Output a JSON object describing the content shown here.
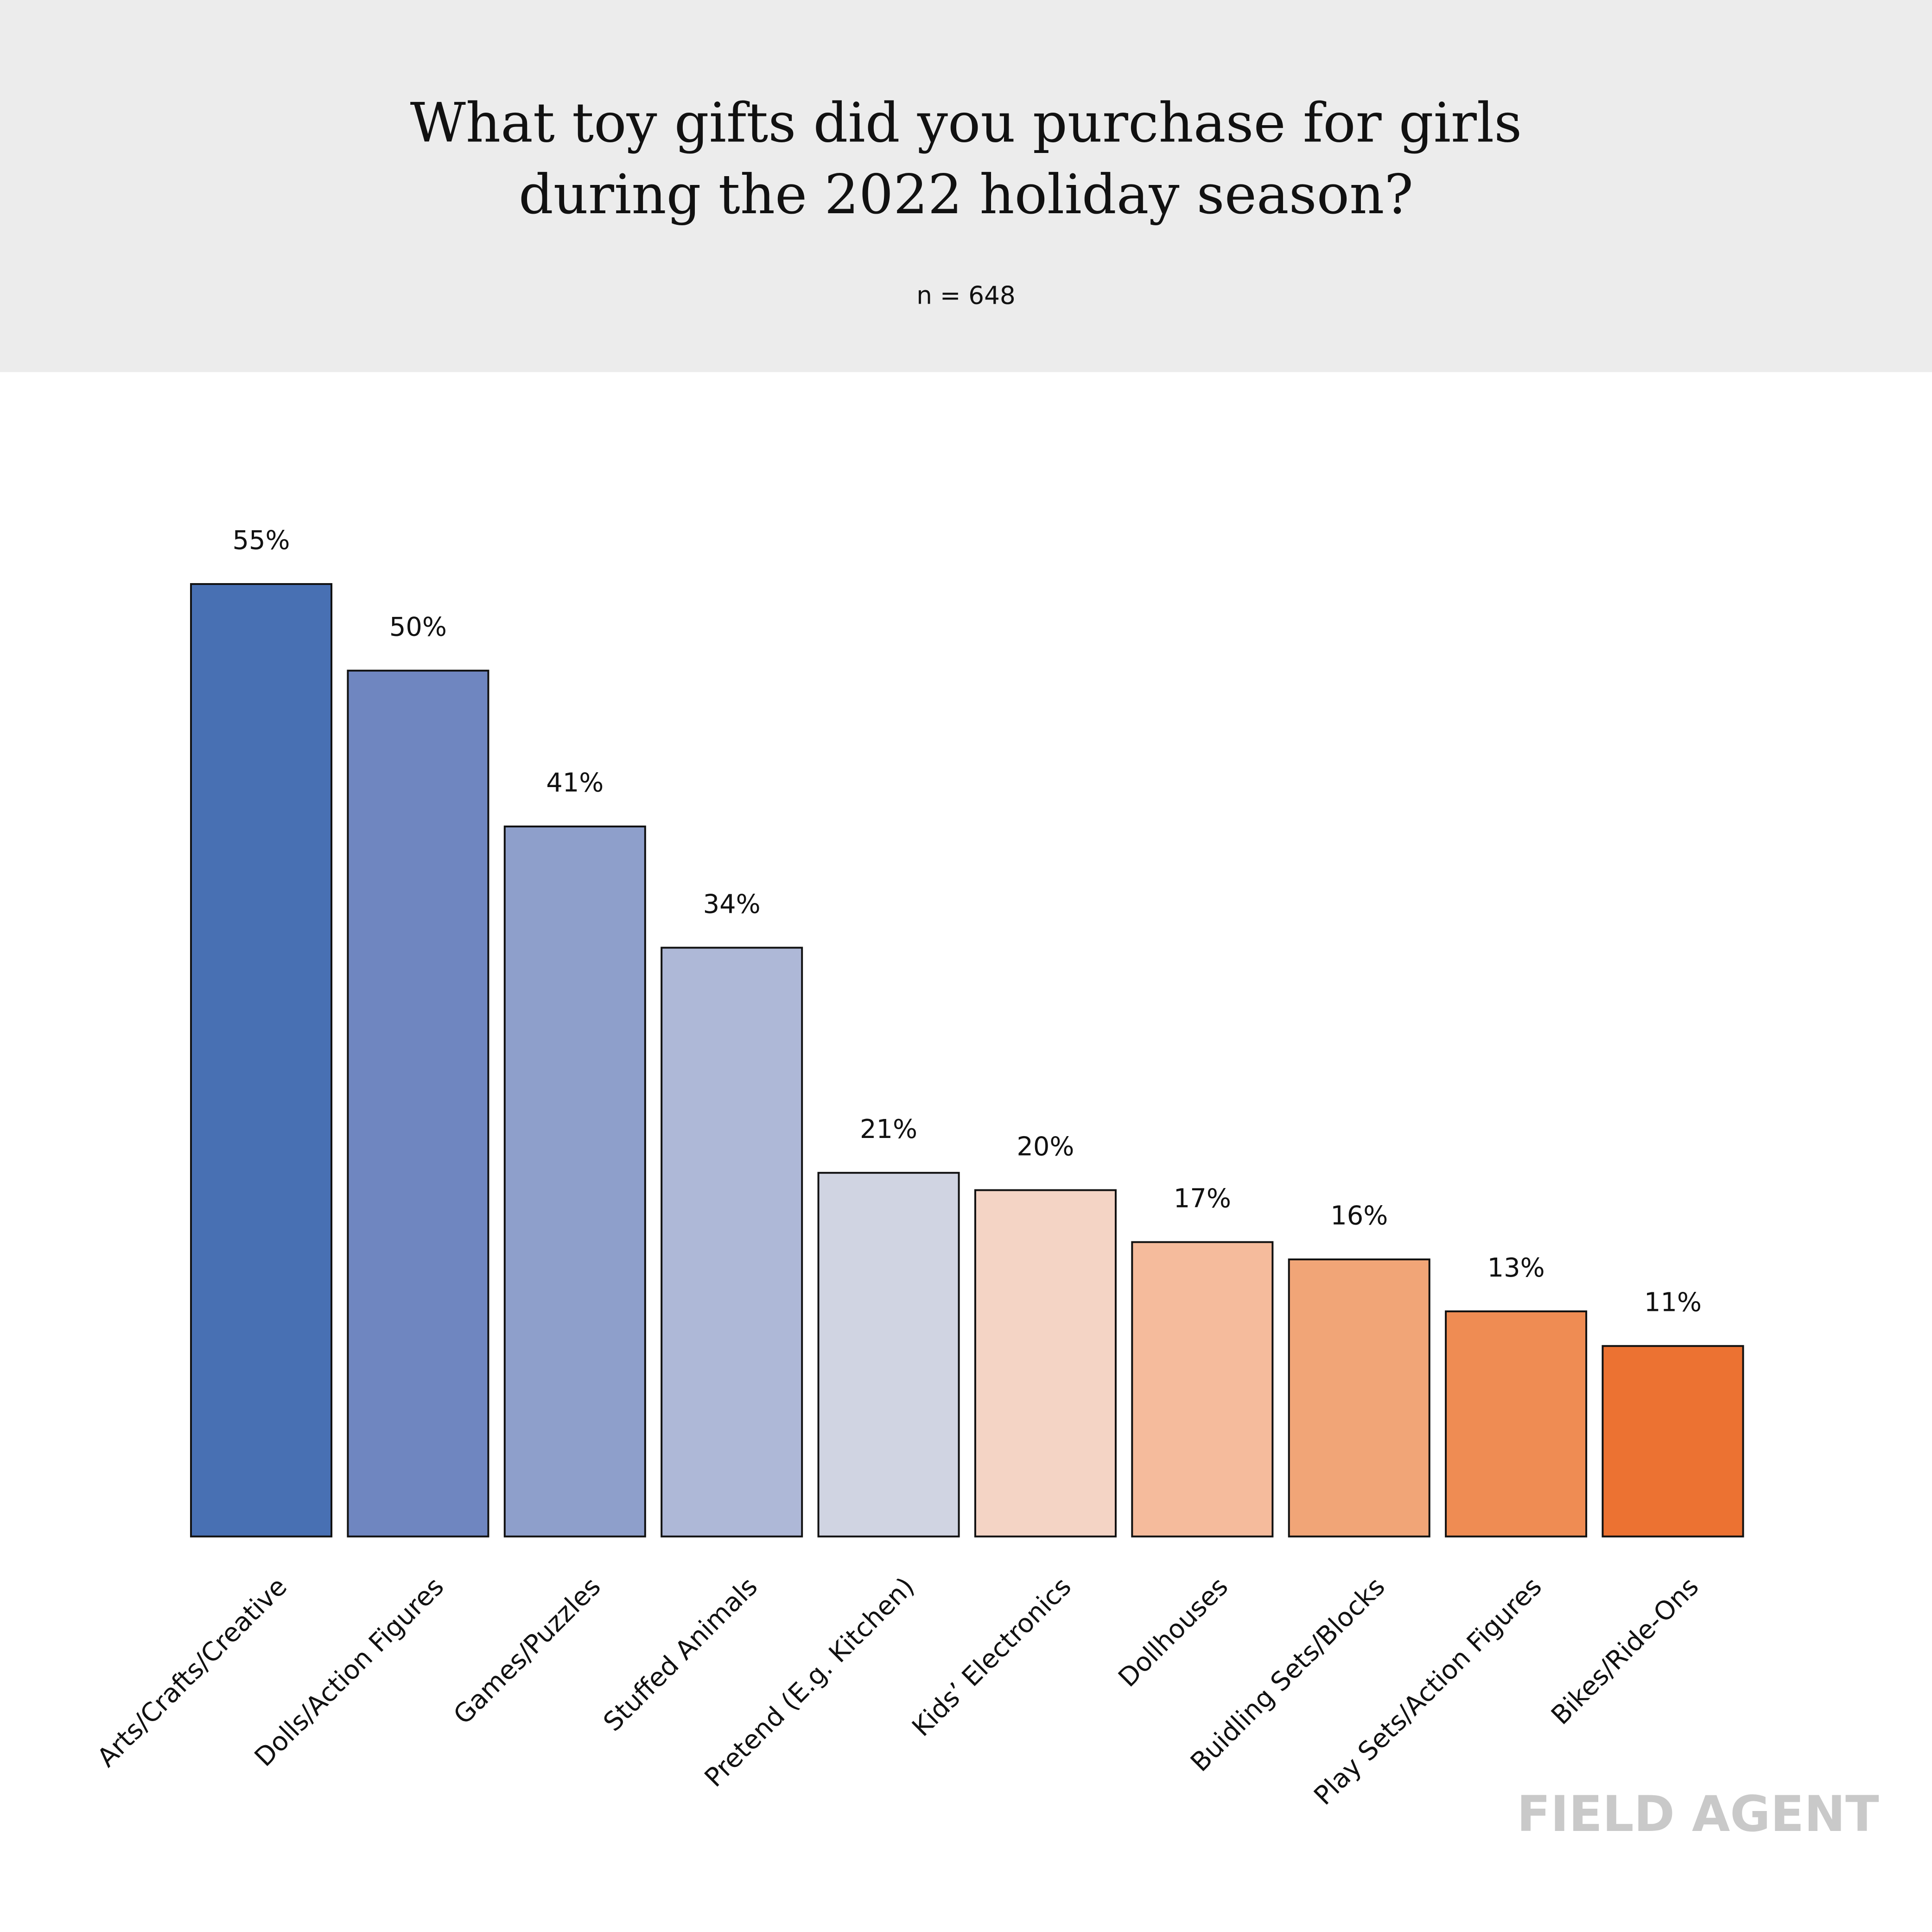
{
  "chart_data": {
    "type": "bar",
    "title": "What toy gifts did you purchase for girls during the 2022 holiday season?",
    "subtitle": "n = 648",
    "categories": [
      "Arts/Crafts/Creative",
      "Dolls/Action Figures",
      "Games/Puzzles",
      "Stuffed Animals",
      "Pretend (E.g. Kitchen)",
      "Kids’ Electronics",
      "Dollhouses",
      "Buidling Sets/Blocks",
      "Play Sets/Action Figures",
      "Bikes/Ride-Ons"
    ],
    "values": [
      55,
      50,
      41,
      34,
      21,
      20,
      17,
      16,
      13,
      11
    ],
    "value_labels": [
      "55%",
      "50%",
      "41%",
      "34%",
      "21%",
      "20%",
      "17%",
      "16%",
      "13%",
      "11%"
    ],
    "colors": [
      "#4870b3",
      "#6f86c0",
      "#8e9fcb",
      "#aeb8d7",
      "#d0d4e2",
      "#f4d4c5",
      "#f5bb9c",
      "#f1a577",
      "#ef8c53",
      "#ec7232"
    ],
    "logo": "FIELD AGENT"
  }
}
